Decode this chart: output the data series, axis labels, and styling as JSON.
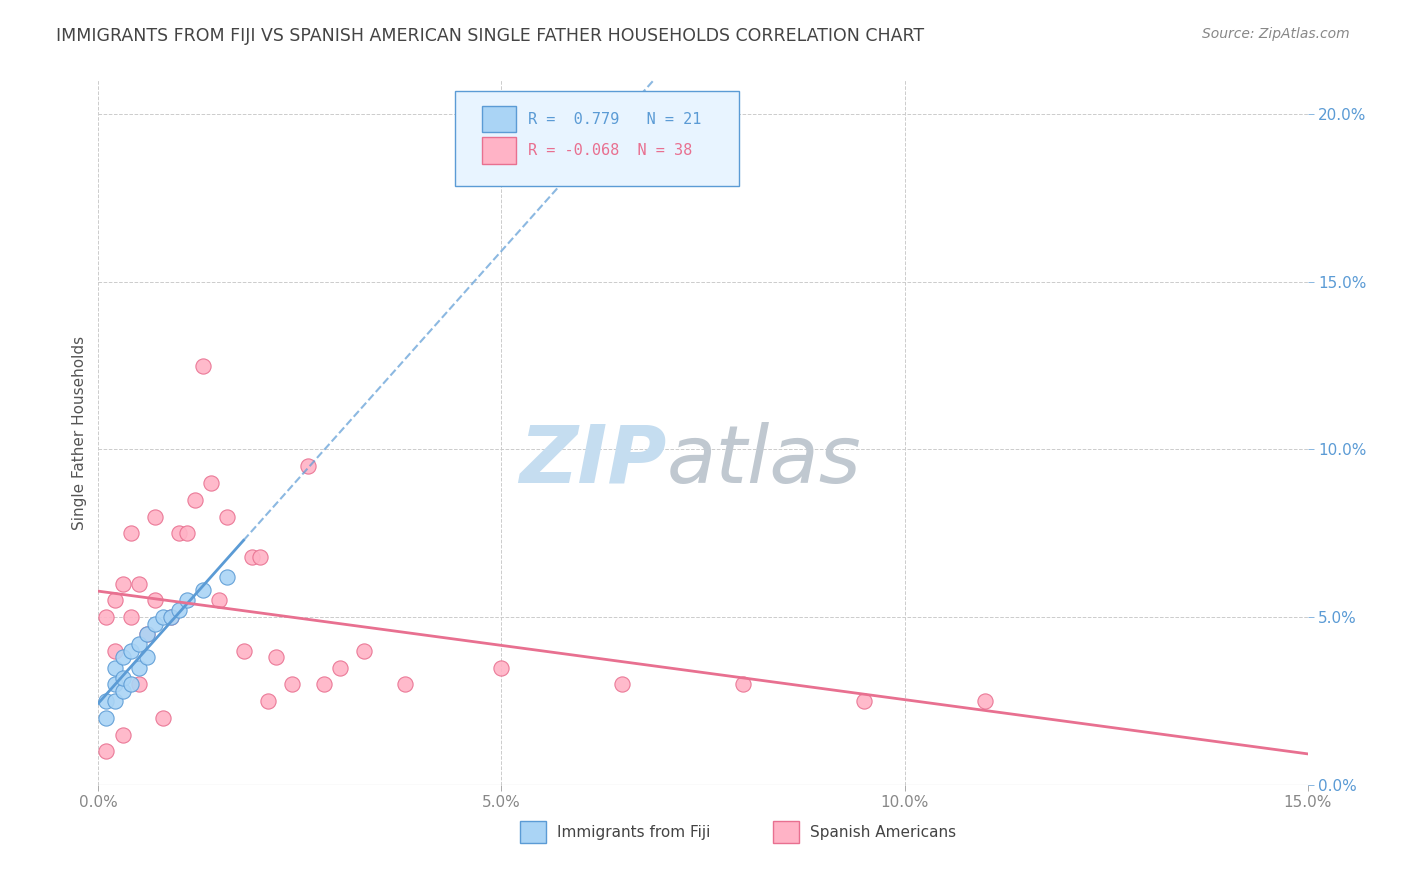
{
  "title": "IMMIGRANTS FROM FIJI VS SPANISH AMERICAN SINGLE FATHER HOUSEHOLDS CORRELATION CHART",
  "source": "Source: ZipAtlas.com",
  "ylabel": "Single Father Households",
  "xlim": [
    0.0,
    0.15
  ],
  "ylim": [
    0.0,
    0.21
  ],
  "xticks": [
    0.0,
    0.05,
    0.1,
    0.15
  ],
  "xtick_labels": [
    "0.0%",
    "5.0%",
    "10.0%",
    "15.0%"
  ],
  "yticks_right": [
    0.0,
    0.05,
    0.1,
    0.15,
    0.2
  ],
  "ytick_right_labels": [
    "0.0%",
    "5.0%",
    "10.0%",
    "15.0%",
    "20.0%"
  ],
  "fiji_color": "#aad4f5",
  "fiji_edge_color": "#5b9bd5",
  "spanish_color": "#ffb3c6",
  "spanish_edge_color": "#e87090",
  "fiji_R": 0.779,
  "fiji_N": 21,
  "spanish_R": -0.068,
  "spanish_N": 38,
  "legend_box_color": "#e8f4ff",
  "legend_border_color": "#5b9bd5",
  "fiji_line_color": "#5b9bd5",
  "spanish_line_color": "#e87090",
  "fiji_scatter_x": [
    0.001,
    0.001,
    0.002,
    0.002,
    0.002,
    0.003,
    0.003,
    0.003,
    0.004,
    0.004,
    0.005,
    0.005,
    0.006,
    0.006,
    0.007,
    0.008,
    0.009,
    0.01,
    0.011,
    0.013,
    0.016
  ],
  "fiji_scatter_y": [
    0.02,
    0.025,
    0.025,
    0.03,
    0.035,
    0.028,
    0.032,
    0.038,
    0.03,
    0.04,
    0.035,
    0.042,
    0.038,
    0.045,
    0.048,
    0.05,
    0.05,
    0.052,
    0.055,
    0.058,
    0.062
  ],
  "spanish_scatter_x": [
    0.001,
    0.001,
    0.002,
    0.002,
    0.003,
    0.003,
    0.004,
    0.004,
    0.005,
    0.005,
    0.006,
    0.007,
    0.007,
    0.008,
    0.009,
    0.01,
    0.011,
    0.012,
    0.013,
    0.014,
    0.015,
    0.016,
    0.018,
    0.019,
    0.02,
    0.021,
    0.022,
    0.024,
    0.026,
    0.028,
    0.03,
    0.033,
    0.038,
    0.05,
    0.065,
    0.08,
    0.095,
    0.11
  ],
  "spanish_scatter_y": [
    0.05,
    0.01,
    0.04,
    0.055,
    0.06,
    0.015,
    0.05,
    0.075,
    0.03,
    0.06,
    0.045,
    0.055,
    0.08,
    0.02,
    0.05,
    0.075,
    0.075,
    0.085,
    0.125,
    0.09,
    0.055,
    0.08,
    0.04,
    0.068,
    0.068,
    0.025,
    0.038,
    0.03,
    0.095,
    0.03,
    0.035,
    0.04,
    0.03,
    0.035,
    0.03,
    0.03,
    0.025,
    0.025
  ],
  "bg_color": "#ffffff",
  "grid_color": "#cccccc",
  "title_color": "#444444",
  "axis_label_color": "#555555",
  "tick_label_color": "#888888",
  "right_tick_color": "#5b9bd5",
  "watermark_zip_color": "#c5ddf0",
  "watermark_atlas_color": "#c0c8d0"
}
